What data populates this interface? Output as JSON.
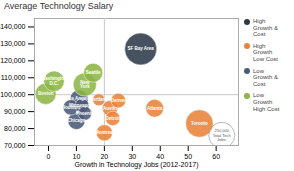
{
  "chart_data": {
    "type": "scatter",
    "title": "Average Technology Salary",
    "xlabel": "Growth in Technology Jobs (2012-2017)",
    "xlim": [
      -5,
      68
    ],
    "ylim": [
      70000,
      145000
    ],
    "xticks": [
      0,
      10,
      20,
      30,
      40,
      50,
      60
    ],
    "yticks": [
      {
        "value": 70000,
        "label": "70,000"
      },
      {
        "value": 80000,
        "label": "80,000"
      },
      {
        "value": 90000,
        "label": "90,000"
      },
      {
        "value": 100000,
        "label": "100,000"
      },
      {
        "value": 110000,
        "label": "110,000"
      },
      {
        "value": 120000,
        "label": "120,000"
      },
      {
        "value": 130000,
        "label": "130,000"
      },
      {
        "value": 140000,
        "label": "$140,000"
      }
    ],
    "reference_lines": {
      "x": 20,
      "y": 100000
    },
    "series": [
      {
        "name": "High\nGrowth &\nCost",
        "color": "#2d3a4a",
        "points": [
          {
            "name": "SF Bay Area",
            "x": 33,
            "y": 127000,
            "size": 380000
          }
        ]
      },
      {
        "name": "High\nGrowth\nLow Cost",
        "color": "#e8833a",
        "points": [
          {
            "name": "Portland",
            "x": 18,
            "y": 97000,
            "size": 55000
          },
          {
            "name": "Austin",
            "x": 22,
            "y": 92000,
            "size": 88000
          },
          {
            "name": "Denver",
            "x": 25,
            "y": 96500,
            "size": 80000
          },
          {
            "name": "Detroit",
            "x": 23,
            "y": 86000,
            "size": 78000
          },
          {
            "name": "Montreal",
            "x": 20,
            "y": 77500,
            "size": 98000
          },
          {
            "name": "Atlanta",
            "x": 38,
            "y": 92000,
            "size": 118000
          },
          {
            "name": "Toronto",
            "x": 54,
            "y": 83000,
            "size": 280000
          }
        ]
      },
      {
        "name": "Low\nGrowth &\nCost",
        "color": "#4a5a78",
        "points": [
          {
            "name": "Los Angeles",
            "x": 11,
            "y": 97500,
            "size": 125000
          },
          {
            "name": "Minneapolis",
            "x": 12,
            "y": 93500,
            "size": 75000
          },
          {
            "name": "Houston",
            "x": 8,
            "y": 92500,
            "size": 88000
          },
          {
            "name": "Phoenix",
            "x": 13,
            "y": 89000,
            "size": 70000
          },
          {
            "name": "Chicago",
            "x": 10,
            "y": 84500,
            "size": 108000
          }
        ]
      },
      {
        "name": "Low\nGrowth\nHigh Cost",
        "color": "#8db646",
        "points": [
          {
            "name": "Seattle",
            "x": 16,
            "y": 113000,
            "size": 135000
          },
          {
            "name": "Washington\nD.C.",
            "x": 2,
            "y": 108000,
            "size": 155000
          },
          {
            "name": "Boston",
            "x": -1,
            "y": 100500,
            "size": 165000
          },
          {
            "name": "New\nYork",
            "x": 13,
            "y": 106000,
            "size": 200000
          }
        ]
      }
    ],
    "size_reference": {
      "x": 62,
      "y": 76000,
      "size": 250000,
      "label": "250,000\nTotal Tech\nJobs."
    }
  }
}
